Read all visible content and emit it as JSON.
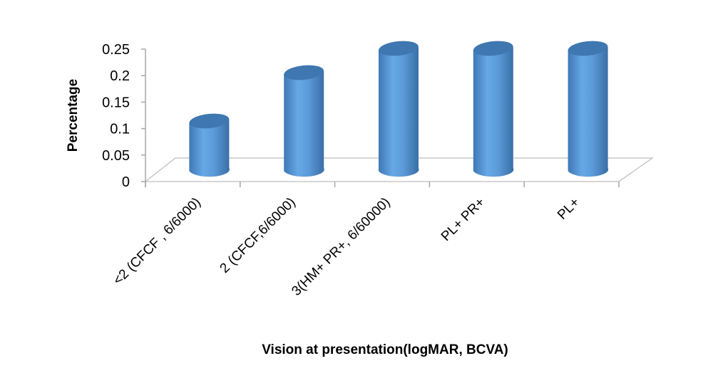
{
  "chart_data": {
    "type": "bar",
    "style": "3d-cylinder",
    "title": "",
    "xlabel": "Vision at presentation(logMAR, BCVA)",
    "ylabel": "Percentage",
    "categories": [
      "<2 (CFCF , 6/6000)",
      "2 (CFCF,6/6000)",
      "3(HM+ PR+, 6/60000)",
      "PL+ PR+",
      "PL+"
    ],
    "values": [
      0.1,
      0.2,
      0.25,
      0.25,
      0.25
    ],
    "ylim": [
      0,
      0.25
    ],
    "yticks": [
      "0",
      "0.05",
      "0.1",
      "0.15",
      "0.2",
      "0.25"
    ],
    "grid": false,
    "legend": "none",
    "bar_color": "#5b9bd5"
  }
}
